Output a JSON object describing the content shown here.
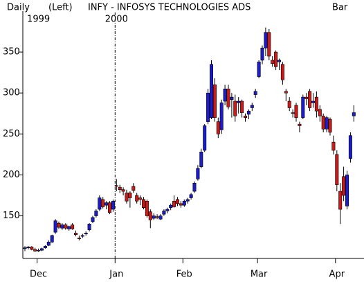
{
  "chart_data": {
    "type": "candlestick",
    "header": {
      "period": "Daily",
      "scale": "(Left)",
      "title": "INFY - INFOSYS TECHNOLOGIES ADS",
      "style": "Bar"
    },
    "years": [
      {
        "label": "1999",
        "index": 4
      },
      {
        "label": "2000",
        "index": 27
      }
    ],
    "up_color": "#1c1cc8",
    "down_color": "#c81c1c",
    "categories": [
      null,
      null,
      null,
      null,
      "Dec",
      null,
      null,
      null,
      null,
      null,
      null,
      null,
      null,
      null,
      null,
      null,
      null,
      null,
      null,
      null,
      null,
      null,
      null,
      null,
      null,
      null,
      null,
      "Jan",
      null,
      null,
      null,
      null,
      null,
      null,
      null,
      null,
      null,
      null,
      null,
      null,
      null,
      null,
      null,
      null,
      null,
      null,
      null,
      "Feb",
      null,
      null,
      null,
      null,
      null,
      null,
      null,
      null,
      null,
      null,
      null,
      null,
      null,
      null,
      null,
      null,
      null,
      null,
      null,
      null,
      null,
      "Mar",
      null,
      null,
      null,
      null,
      null,
      null,
      null,
      null,
      null,
      null,
      null,
      null,
      null,
      null,
      null,
      null,
      null,
      null,
      null,
      null,
      null,
      null,
      "Apr",
      null,
      null,
      null,
      null,
      null
    ],
    "ohlc": [
      [
        110,
        113,
        107,
        111
      ],
      [
        111,
        113,
        109,
        112
      ],
      [
        112,
        113,
        108,
        109
      ],
      [
        109,
        111,
        106,
        107
      ],
      [
        108,
        110,
        106,
        108
      ],
      [
        108,
        111,
        107,
        110
      ],
      [
        111,
        114,
        110,
        113
      ],
      [
        114,
        120,
        113,
        118
      ],
      [
        118,
        127,
        117,
        126
      ],
      [
        130,
        146,
        128,
        144
      ],
      [
        141,
        143,
        134,
        136
      ],
      [
        135,
        141,
        133,
        139
      ],
      [
        139,
        141,
        133,
        135
      ],
      [
        134,
        138,
        132,
        137
      ],
      [
        139,
        141,
        133,
        134
      ],
      [
        129,
        132,
        125,
        127
      ],
      [
        123,
        126,
        120,
        122
      ],
      [
        125,
        128,
        123,
        126
      ],
      [
        128,
        131,
        126,
        129
      ],
      [
        133,
        141,
        131,
        140
      ],
      [
        143,
        150,
        141,
        148
      ],
      [
        150,
        158,
        148,
        156
      ],
      [
        158,
        175,
        156,
        172
      ],
      [
        170,
        173,
        159,
        161
      ],
      [
        163,
        168,
        158,
        166
      ],
      [
        166,
        168,
        152,
        154
      ],
      [
        158,
        170,
        155,
        168
      ],
      [
        187,
        195,
        180,
        186
      ],
      [
        185,
        188,
        178,
        182
      ],
      [
        182,
        185,
        175,
        180
      ],
      [
        178,
        182,
        165,
        168
      ],
      [
        178,
        180,
        160,
        172
      ],
      [
        186,
        190,
        178,
        181
      ],
      [
        175,
        178,
        165,
        168
      ],
      [
        172,
        175,
        163,
        170
      ],
      [
        170,
        173,
        158,
        160
      ],
      [
        168,
        170,
        148,
        150
      ],
      [
        155,
        158,
        135,
        145
      ],
      [
        147,
        153,
        145,
        150
      ],
      [
        149,
        152,
        146,
        148
      ],
      [
        146,
        152,
        145,
        150
      ],
      [
        152,
        158,
        150,
        156
      ],
      [
        156,
        160,
        153,
        158
      ],
      [
        160,
        165,
        157,
        163
      ],
      [
        168,
        175,
        160,
        161
      ],
      [
        170,
        173,
        162,
        165
      ],
      [
        165,
        168,
        160,
        163
      ],
      [
        163,
        170,
        161,
        168
      ],
      [
        168,
        172,
        165,
        170
      ],
      [
        172,
        178,
        170,
        176
      ],
      [
        180,
        192,
        178,
        190
      ],
      [
        195,
        212,
        193,
        208
      ],
      [
        210,
        232,
        208,
        228
      ],
      [
        230,
        262,
        228,
        260
      ],
      [
        265,
        305,
        262,
        300
      ],
      [
        270,
        340,
        268,
        335
      ],
      [
        310,
        318,
        265,
        270
      ],
      [
        265,
        270,
        245,
        250
      ],
      [
        255,
        292,
        250,
        288
      ],
      [
        290,
        310,
        285,
        305
      ],
      [
        305,
        310,
        280,
        283
      ],
      [
        292,
        300,
        270,
        295
      ],
      [
        290,
        298,
        265,
        272
      ],
      [
        288,
        295,
        275,
        290
      ],
      [
        290,
        292,
        270,
        276
      ],
      [
        272,
        275,
        265,
        270
      ],
      [
        274,
        280,
        268,
        278
      ],
      [
        282,
        288,
        278,
        285
      ],
      [
        298,
        305,
        294,
        302
      ],
      [
        320,
        340,
        318,
        338
      ],
      [
        340,
        358,
        335,
        355
      ],
      [
        355,
        380,
        345,
        374
      ],
      [
        374,
        378,
        340,
        345
      ],
      [
        340,
        345,
        332,
        336
      ],
      [
        350,
        352,
        328,
        332
      ],
      [
        338,
        342,
        328,
        340
      ],
      [
        335,
        338,
        310,
        316
      ],
      [
        302,
        305,
        290,
        300
      ],
      [
        290,
        295,
        278,
        282
      ],
      [
        276,
        280,
        270,
        275
      ],
      [
        285,
        288,
        265,
        270
      ],
      [
        262,
        265,
        252,
        260
      ],
      [
        270,
        298,
        268,
        295
      ],
      [
        295,
        300,
        285,
        293
      ],
      [
        302,
        305,
        278,
        282
      ],
      [
        288,
        300,
        282,
        290
      ],
      [
        295,
        302,
        270,
        278
      ],
      [
        280,
        285,
        265,
        272
      ],
      [
        272,
        275,
        252,
        256
      ],
      [
        256,
        272,
        252,
        270
      ],
      [
        268,
        270,
        248,
        252
      ],
      [
        240,
        248,
        225,
        230
      ],
      [
        225,
        230,
        180,
        188
      ],
      [
        180,
        190,
        140,
        158
      ],
      [
        198,
        210,
        168,
        175
      ],
      [
        162,
        205,
        158,
        200
      ],
      [
        220,
        252,
        215,
        248
      ],
      [
        272,
        285,
        265,
        276
      ]
    ],
    "ylim": [
      98,
      400
    ],
    "yticks": [
      150,
      200,
      250,
      300,
      350
    ]
  }
}
